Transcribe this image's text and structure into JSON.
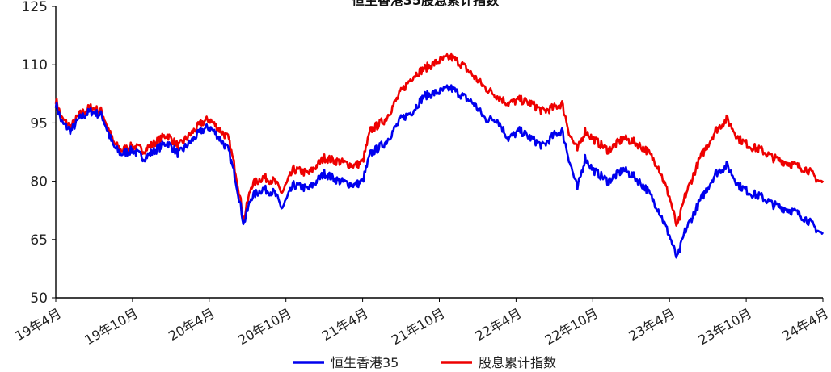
{
  "chart_data": {
    "type": "line",
    "title": "恒生香港35股息累计指数",
    "xlabel": "",
    "ylabel": "",
    "ylim": [
      50,
      125
    ],
    "yticks": [
      50,
      65,
      80,
      95,
      110,
      125
    ],
    "grid": false,
    "legend_position": "bottom",
    "x_labels": [
      "19年4月",
      "19年10月",
      "20年4月",
      "20年10月",
      "21年4月",
      "21年10月",
      "22年4月",
      "22年10月",
      "23年4月",
      "23年10月",
      "24年4月"
    ],
    "series": [
      {
        "name": "恒生香港35",
        "color": "#0000ee",
        "points": [
          [
            0,
            100
          ],
          [
            0.08,
            95
          ],
          [
            0.2,
            93
          ],
          [
            0.3,
            96
          ],
          [
            0.45,
            98
          ],
          [
            0.6,
            97
          ],
          [
            0.75,
            89
          ],
          [
            0.85,
            87
          ],
          [
            1.0,
            88
          ],
          [
            1.15,
            86
          ],
          [
            1.3,
            88
          ],
          [
            1.45,
            90
          ],
          [
            1.6,
            87
          ],
          [
            1.75,
            90
          ],
          [
            1.9,
            93
          ],
          [
            2.0,
            94
          ],
          [
            2.1,
            92
          ],
          [
            2.25,
            88
          ],
          [
            2.35,
            80
          ],
          [
            2.45,
            69
          ],
          [
            2.55,
            76
          ],
          [
            2.7,
            78
          ],
          [
            2.85,
            77
          ],
          [
            2.95,
            73
          ],
          [
            3.1,
            79
          ],
          [
            3.3,
            78
          ],
          [
            3.5,
            82
          ],
          [
            3.7,
            80
          ],
          [
            3.9,
            79
          ],
          [
            4.0,
            80
          ],
          [
            4.1,
            87
          ],
          [
            4.3,
            90
          ],
          [
            4.5,
            96
          ],
          [
            4.65,
            98
          ],
          [
            4.8,
            102
          ],
          [
            5.0,
            103
          ],
          [
            5.15,
            104
          ],
          [
            5.3,
            102
          ],
          [
            5.45,
            100
          ],
          [
            5.6,
            96
          ],
          [
            5.75,
            96
          ],
          [
            5.9,
            91
          ],
          [
            6.05,
            93
          ],
          [
            6.2,
            91
          ],
          [
            6.35,
            89
          ],
          [
            6.5,
            92
          ],
          [
            6.6,
            93
          ],
          [
            6.7,
            85
          ],
          [
            6.8,
            78
          ],
          [
            6.9,
            86
          ],
          [
            7.0,
            83
          ],
          [
            7.2,
            80
          ],
          [
            7.4,
            83
          ],
          [
            7.55,
            81
          ],
          [
            7.7,
            78
          ],
          [
            7.85,
            73
          ],
          [
            8.0,
            66
          ],
          [
            8.1,
            60
          ],
          [
            8.2,
            67
          ],
          [
            8.4,
            75
          ],
          [
            8.6,
            82
          ],
          [
            8.75,
            84
          ],
          [
            8.9,
            79
          ],
          [
            9.05,
            77
          ],
          [
            9.2,
            76
          ],
          [
            9.35,
            74
          ],
          [
            9.5,
            73
          ],
          [
            9.65,
            72
          ],
          [
            9.8,
            70
          ],
          [
            9.95,
            67
          ],
          [
            10.1,
            65
          ],
          [
            10.25,
            64
          ],
          [
            10.4,
            63
          ],
          [
            10.55,
            61
          ],
          [
            10.7,
            60
          ],
          [
            10.85,
            60
          ],
          [
            10.95,
            57
          ],
          [
            11.0,
            61
          ]
        ]
      },
      {
        "name": "股息累计指数",
        "color": "#ee0000",
        "points": [
          [
            0,
            101
          ],
          [
            0.08,
            96
          ],
          [
            0.2,
            94
          ],
          [
            0.3,
            97
          ],
          [
            0.45,
            99
          ],
          [
            0.6,
            98
          ],
          [
            0.75,
            90
          ],
          [
            0.85,
            88
          ],
          [
            1.0,
            89
          ],
          [
            1.15,
            88
          ],
          [
            1.3,
            90
          ],
          [
            1.45,
            92
          ],
          [
            1.6,
            89
          ],
          [
            1.75,
            92
          ],
          [
            1.9,
            95
          ],
          [
            2.0,
            96
          ],
          [
            2.1,
            94
          ],
          [
            2.25,
            91
          ],
          [
            2.35,
            82
          ],
          [
            2.45,
            70
          ],
          [
            2.55,
            79
          ],
          [
            2.7,
            81
          ],
          [
            2.85,
            80
          ],
          [
            2.95,
            77
          ],
          [
            3.1,
            83
          ],
          [
            3.3,
            82
          ],
          [
            3.5,
            86
          ],
          [
            3.7,
            85
          ],
          [
            3.9,
            84
          ],
          [
            4.0,
            85
          ],
          [
            4.1,
            93
          ],
          [
            4.3,
            96
          ],
          [
            4.5,
            103
          ],
          [
            4.65,
            107
          ],
          [
            4.8,
            109
          ],
          [
            5.0,
            111
          ],
          [
            5.15,
            112
          ],
          [
            5.3,
            110
          ],
          [
            5.45,
            107
          ],
          [
            5.6,
            104
          ],
          [
            5.75,
            102
          ],
          [
            5.9,
            100
          ],
          [
            6.05,
            101
          ],
          [
            6.2,
            100
          ],
          [
            6.35,
            98
          ],
          [
            6.5,
            99
          ],
          [
            6.6,
            100
          ],
          [
            6.7,
            92
          ],
          [
            6.8,
            88
          ],
          [
            6.9,
            93
          ],
          [
            7.0,
            91
          ],
          [
            7.2,
            88
          ],
          [
            7.4,
            91
          ],
          [
            7.55,
            90
          ],
          [
            7.7,
            88
          ],
          [
            7.85,
            84
          ],
          [
            8.0,
            76
          ],
          [
            8.1,
            68
          ],
          [
            8.2,
            76
          ],
          [
            8.4,
            86
          ],
          [
            8.6,
            93
          ],
          [
            8.75,
            96
          ],
          [
            8.9,
            91
          ],
          [
            9.05,
            89
          ],
          [
            9.2,
            88
          ],
          [
            9.35,
            86
          ],
          [
            9.5,
            85
          ],
          [
            9.65,
            84
          ],
          [
            9.8,
            83
          ],
          [
            9.95,
            80
          ],
          [
            10.1,
            79
          ],
          [
            10.25,
            77
          ],
          [
            10.4,
            76
          ],
          [
            10.55,
            74
          ],
          [
            10.7,
            72
          ],
          [
            10.85,
            72
          ],
          [
            10.95,
            68
          ],
          [
            11.0,
            73
          ]
        ]
      }
    ]
  }
}
